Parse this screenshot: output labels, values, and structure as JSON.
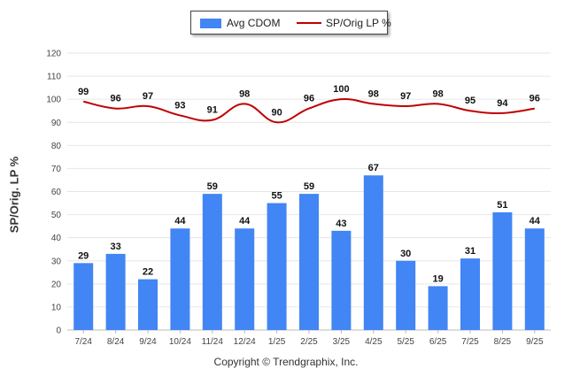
{
  "chart_data": {
    "type": "bar",
    "title": "",
    "ylabel": "SP/Orig. LP %",
    "xlabel": "",
    "ylim": [
      0,
      120
    ],
    "yticks": [
      0,
      10,
      20,
      30,
      40,
      50,
      60,
      70,
      80,
      90,
      100,
      110,
      120
    ],
    "categories": [
      "7/24",
      "8/24",
      "9/24",
      "10/24",
      "11/24",
      "12/24",
      "1/25",
      "2/25",
      "3/25",
      "4/25",
      "5/25",
      "6/25",
      "7/25",
      "8/25",
      "9/25"
    ],
    "series": [
      {
        "name": "Avg CDOM",
        "type": "bar",
        "color": "#4285f4",
        "values": [
          29,
          33,
          22,
          44,
          59,
          44,
          55,
          59,
          43,
          67,
          30,
          19,
          31,
          51,
          44
        ]
      },
      {
        "name": "SP/Orig LP %",
        "type": "line",
        "color": "#c00000",
        "values": [
          99,
          96,
          97,
          93,
          91,
          98,
          90,
          96,
          100,
          98,
          97,
          98,
          95,
          94,
          96
        ]
      }
    ],
    "legend": "top-center",
    "grid": true
  },
  "footer": {
    "copyright": "Copyright © Trendgraphix, Inc."
  }
}
